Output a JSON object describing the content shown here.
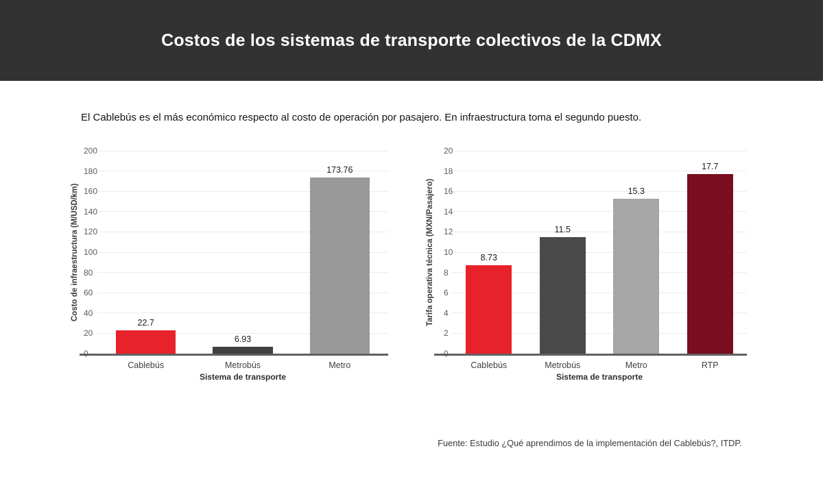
{
  "header": {
    "title": "Costos de los sistemas de transporte colectivos de la CDMX",
    "bg_color": "#323232",
    "text_color": "#ffffff"
  },
  "subtitle": "El Cablebús es el más económico respecto al costo de operación por pasajero. En infraestructura toma el segundo puesto.",
  "source": "Fuente: Estudio ¿Qué aprendimos de la implementación del Cablebús?, ITDP.",
  "colors": {
    "cablebus_red": "#e7222b",
    "metrobus_dark_gray": "#404040",
    "metro_gray": "#999999",
    "rtp_maroon": "#7a0d1e",
    "gridline": "#ececec",
    "axis_line": "#606060"
  },
  "chart_data": [
    {
      "type": "bar",
      "title": "",
      "categories": [
        "Cablebús",
        "Metrobús",
        "Metro"
      ],
      "values": [
        22.7,
        6.93,
        173.76
      ],
      "labels": [
        "22.7",
        "6.93",
        "173.76"
      ],
      "colors": [
        "#e7222b",
        "#404040",
        "#999999"
      ],
      "xlabel": "Sistema de transporte",
      "ylabel": "Costo de infraestructura (M/USD/km)",
      "ylim": [
        0,
        200
      ],
      "ytick_step": 20,
      "grid": true,
      "legend": "none"
    },
    {
      "type": "bar",
      "title": "",
      "categories": [
        "Cablebús",
        "Metrobús",
        "Metro",
        "RTP"
      ],
      "values": [
        8.73,
        11.5,
        15.3,
        17.7
      ],
      "labels": [
        "8.73",
        "11.5",
        "15.3",
        "17.7"
      ],
      "colors": [
        "#e7222b",
        "#4a4a4a",
        "#a6a6a6",
        "#7a0d1e"
      ],
      "xlabel": "Sistema de transporte",
      "ylabel": "Tarifa operativa técnica (MXN/Pasajero)",
      "ylim": [
        0,
        20
      ],
      "ytick_step": 2,
      "grid": true,
      "legend": "none"
    }
  ]
}
